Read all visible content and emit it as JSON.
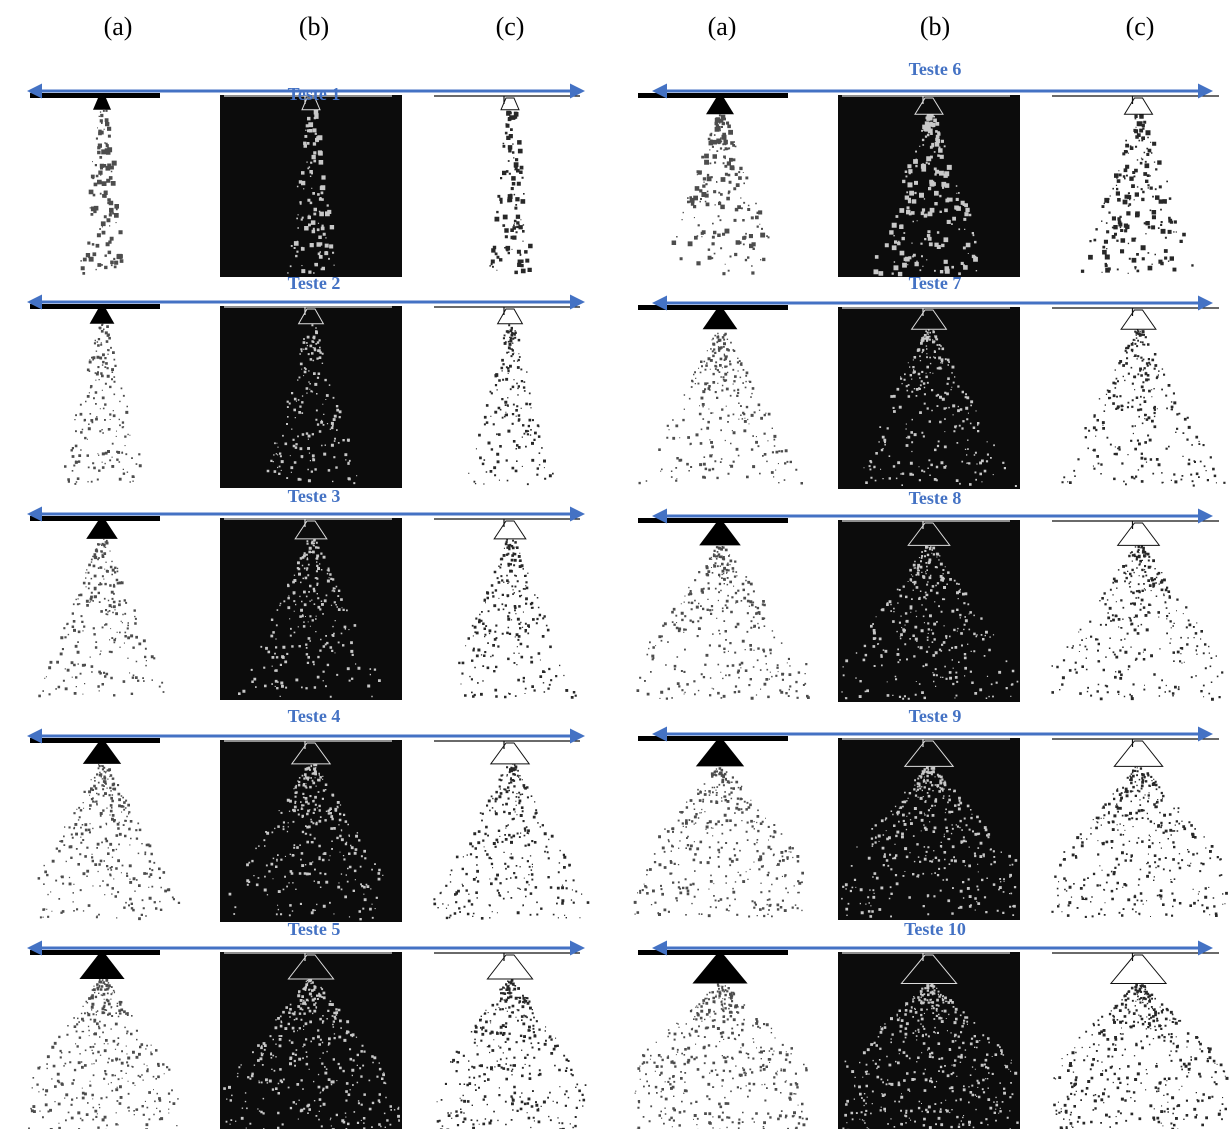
{
  "column_labels": [
    "(a)",
    "(b)",
    "(c)",
    "(a)",
    "(b)",
    "(c)"
  ],
  "tests": [
    "Teste 1",
    "Teste 2",
    "Teste 3",
    "Teste 4",
    "Teste 5",
    "Teste 6",
    "Teste 7",
    "Teste 8",
    "Teste 9",
    "Teste 10"
  ]
}
